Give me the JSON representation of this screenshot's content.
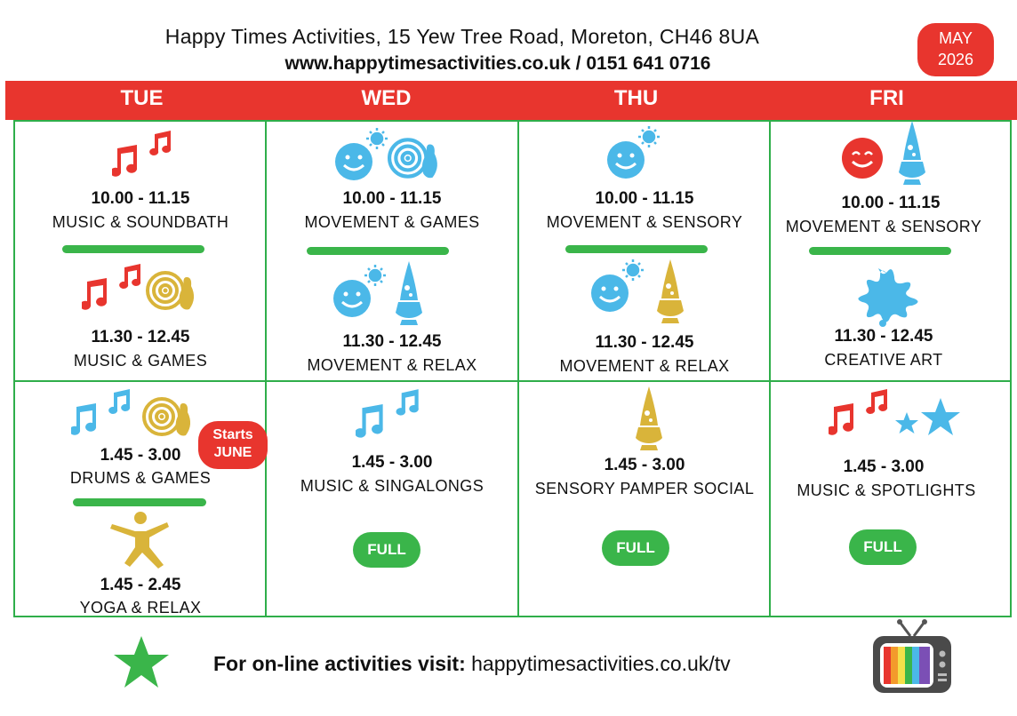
{
  "header": {
    "address": "Happy Times Activities, 15 Yew Tree Road, Moreton, CH46 8UA",
    "contact": "www.happytimesactivities.co.uk / 0151 641 0716",
    "month": "MAY",
    "year": "2026"
  },
  "days": [
    "TUE",
    "WED",
    "THU",
    "FRI"
  ],
  "sessions": {
    "tue_1": {
      "time": "10.00 - 11.15",
      "activity": "MUSIC & SOUNDBATH"
    },
    "tue_2": {
      "time": "11.30 - 12.45",
      "activity": "MUSIC & GAMES"
    },
    "tue_3": {
      "time": "1.45 - 3.00",
      "activity": "DRUMS & GAMES"
    },
    "tue_4": {
      "time": "1.45 - 2.45",
      "activity": "YOGA & RELAX"
    },
    "wed_1": {
      "time": "10.00 - 11.15",
      "activity": "MOVEMENT & GAMES"
    },
    "wed_2": {
      "time": "11.30 - 12.45",
      "activity": "MOVEMENT & RELAX"
    },
    "wed_3": {
      "time": "1.45 - 3.00",
      "activity": "MUSIC & SINGALONGS"
    },
    "thu_1": {
      "time": "10.00 - 11.15",
      "activity": "MOVEMENT & SENSORY"
    },
    "thu_2": {
      "time": "11.30 - 12.45",
      "activity": "MOVEMENT & RELAX"
    },
    "thu_3": {
      "time": "1.45 - 3.00",
      "activity": "SENSORY PAMPER SOCIAL"
    },
    "fri_1": {
      "time": "10.00 - 11.15",
      "activity": "MOVEMENT  & SENSORY"
    },
    "fri_2": {
      "time": "11.30 - 12.45",
      "activity": "CREATIVE ART"
    },
    "fri_3": {
      "time": "1.45 - 3.00",
      "activity": "MUSIC & SPOTLIGHTS"
    }
  },
  "badges": {
    "full": "FULL",
    "starts_line1": "Starts",
    "starts_line2": "JUNE"
  },
  "footer": {
    "label": "For on-line activities visit:",
    "url": "happytimesactivities.co.uk/tv"
  },
  "colors": {
    "red": "#e8352e",
    "green": "#3ab54a",
    "blue": "#4bb8e8",
    "gold": "#d9b43a"
  },
  "icons": [
    "music-notes-icon",
    "smiley-sun-icon",
    "bowling-target-icon",
    "lava-lamp-icon",
    "paint-splat-icon",
    "stars-icon",
    "yoga-figure-icon",
    "tv-icon",
    "star-icon"
  ]
}
